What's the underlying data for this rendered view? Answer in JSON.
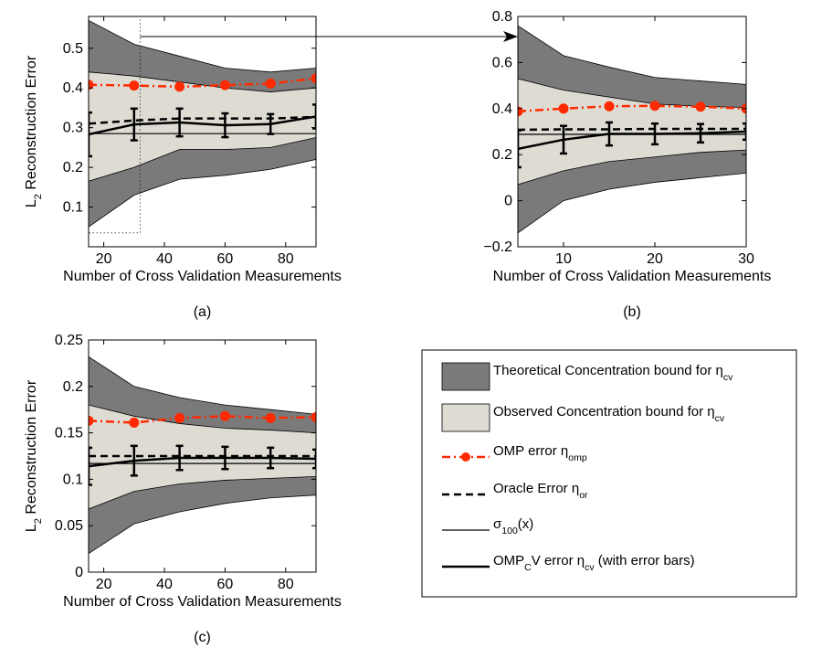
{
  "colors": {
    "theoretical": "#7a7a7a",
    "observed": "#dedbd3",
    "omp": "#ff2a00"
  },
  "legend": {
    "items": [
      {
        "key": "theoretical",
        "text": "Theoretical Concentration bound for η",
        "sub": "cv"
      },
      {
        "key": "observed",
        "text": "Observed Concentration bound for η",
        "sub": "cv"
      },
      {
        "key": "omp",
        "text": "OMP error η",
        "sub": "omp"
      },
      {
        "key": "oracle",
        "text": "Oracle Error η",
        "sub": "or"
      },
      {
        "key": "sigma",
        "text": "σ",
        "sub": "100",
        "after": "(x)"
      },
      {
        "key": "cv",
        "text": "OMP",
        "sub": "C",
        "after": "V error η",
        "sub2": "cv",
        "after2": " (with error bars)"
      }
    ]
  },
  "chart_data": [
    {
      "type": "line",
      "caption": "(a)",
      "xlabel": "Number of Cross Validation Measurements",
      "ylabel": "L",
      "ylabel_sub": "2",
      "ylabel_rest": " Reconstruction Error",
      "xlim": [
        15,
        90
      ],
      "ylim": [
        0,
        0.58
      ],
      "xticks": [
        20,
        40,
        60,
        80
      ],
      "yticks": [
        0.1,
        0.2,
        0.3,
        0.4,
        0.5
      ],
      "x": [
        15,
        30,
        45,
        60,
        75,
        90
      ],
      "theoretical_upper": [
        0.57,
        0.51,
        0.48,
        0.45,
        0.44,
        0.45
      ],
      "observed_upper": [
        0.44,
        0.43,
        0.415,
        0.4,
        0.39,
        0.4
      ],
      "observed_lower": [
        0.165,
        0.2,
        0.245,
        0.245,
        0.25,
        0.275
      ],
      "theoretical_lower": [
        0.05,
        0.13,
        0.17,
        0.18,
        0.195,
        0.22
      ],
      "omp": [
        0.408,
        0.406,
        0.403,
        0.407,
        0.411,
        0.424
      ],
      "oracle": [
        0.31,
        0.318,
        0.323,
        0.323,
        0.323,
        0.327
      ],
      "sigma": [
        0.285,
        0.285,
        0.285,
        0.285,
        0.285,
        0.285
      ],
      "cv": [
        0.283,
        0.308,
        0.313,
        0.306,
        0.309,
        0.328
      ],
      "cv_err": [
        0.055,
        0.04,
        0.035,
        0.03,
        0.025,
        0.03
      ],
      "zoom_box": {
        "x": [
          15,
          32
        ],
        "y": [
          0.035,
          0.58
        ]
      }
    },
    {
      "type": "line",
      "caption": "(b)",
      "xlabel": "Number of Cross Validation Measurements",
      "xlim": [
        5,
        30
      ],
      "ylim": [
        -0.2,
        0.8
      ],
      "xticks": [
        10,
        20,
        30
      ],
      "yticks": [
        -0.2,
        0,
        0.2,
        0.4,
        0.6,
        0.8
      ],
      "ytick_labels": [
        "−0.2",
        "0",
        "0.2",
        "0.4",
        "0.6",
        "0.8"
      ],
      "x": [
        5,
        10,
        15,
        20,
        25,
        30
      ],
      "theoretical_upper": [
        0.76,
        0.63,
        0.58,
        0.535,
        0.52,
        0.505
      ],
      "observed_upper": [
        0.53,
        0.48,
        0.45,
        0.42,
        0.41,
        0.405
      ],
      "observed_lower": [
        0.07,
        0.13,
        0.17,
        0.19,
        0.21,
        0.22
      ],
      "theoretical_lower": [
        -0.14,
        0.0,
        0.05,
        0.08,
        0.1,
        0.12
      ],
      "omp": [
        0.388,
        0.4,
        0.41,
        0.412,
        0.408,
        0.4
      ],
      "oracle": [
        0.308,
        0.31,
        0.31,
        0.312,
        0.312,
        0.312
      ],
      "sigma": [
        0.288,
        0.288,
        0.288,
        0.288,
        0.288,
        0.288
      ],
      "cv": [
        0.225,
        0.265,
        0.29,
        0.29,
        0.293,
        0.3
      ],
      "cv_err": [
        0.08,
        0.06,
        0.05,
        0.045,
        0.04,
        0.035
      ]
    },
    {
      "type": "line",
      "caption": "(c)",
      "xlabel": "Number of Cross Validation Measurements",
      "ylabel": "L",
      "ylabel_sub": "2",
      "ylabel_rest": " Reconstruction Error",
      "xlim": [
        15,
        90
      ],
      "ylim": [
        0,
        0.25
      ],
      "xticks": [
        20,
        40,
        60,
        80
      ],
      "yticks": [
        0,
        0.05,
        0.1,
        0.15,
        0.2,
        0.25
      ],
      "x": [
        15,
        30,
        45,
        60,
        75,
        90
      ],
      "theoretical_upper": [
        0.232,
        0.2,
        0.188,
        0.18,
        0.175,
        0.17
      ],
      "observed_upper": [
        0.18,
        0.168,
        0.16,
        0.155,
        0.153,
        0.15
      ],
      "observed_lower": [
        0.068,
        0.087,
        0.095,
        0.099,
        0.101,
        0.103
      ],
      "theoretical_lower": [
        0.02,
        0.052,
        0.065,
        0.074,
        0.08,
        0.083
      ],
      "omp": [
        0.163,
        0.161,
        0.166,
        0.168,
        0.166,
        0.167
      ],
      "oracle": [
        0.125,
        0.125,
        0.125,
        0.125,
        0.125,
        0.125
      ],
      "sigma": [
        0.117,
        0.117,
        0.117,
        0.117,
        0.117,
        0.117
      ],
      "cv": [
        0.114,
        0.12,
        0.123,
        0.123,
        0.123,
        0.122
      ],
      "cv_err": [
        0.02,
        0.016,
        0.013,
        0.012,
        0.011,
        0.01
      ]
    }
  ]
}
